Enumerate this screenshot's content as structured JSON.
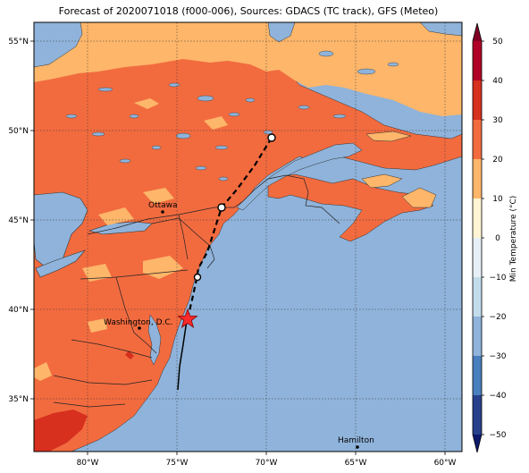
{
  "title": "Forecast of 2020071018 (f000-006), Sources: GDACS (TC track), GFS (Meteo)",
  "map": {
    "lon_labels": [
      "80°W",
      "75°W",
      "70°W",
      "65°W",
      "60°W"
    ],
    "lat_labels": [
      "55°N",
      "50°N",
      "45°N",
      "40°N",
      "35°N"
    ],
    "cities": [
      {
        "name": "Ottawa"
      },
      {
        "name": "Washington, D.C."
      },
      {
        "name": "Hamilton"
      }
    ],
    "colors": {
      "ocean": "#8fb3da",
      "land_20_30": "#f26b3f",
      "land_10_20": "#fdb66a",
      "land_30_40": "#d7301f"
    }
  },
  "colorbar": {
    "label": "Min Temperature (°C)",
    "ticks": [
      "50",
      "40",
      "30",
      "20",
      "10",
      "0",
      "−10",
      "−20",
      "−30",
      "−40",
      "−50"
    ],
    "colors": [
      "#800026",
      "#b10026",
      "#d7301f",
      "#f26b3f",
      "#fdb66a",
      "#fff5d4",
      "#e6f0f6",
      "#c2dceb",
      "#8fb3da",
      "#4a7fbd",
      "#27408b",
      "#0c1a6b"
    ]
  },
  "track": {
    "marker_icons": [
      "open-circle",
      "open-circle",
      "open-circle",
      "red-star"
    ]
  }
}
